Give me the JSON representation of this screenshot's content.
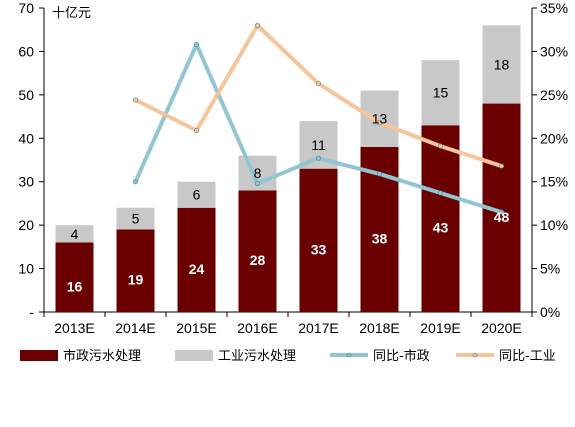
{
  "chart_data": {
    "type": "bar",
    "subtype": "stacked bar with dual-axis lines",
    "unit_label": "十亿元",
    "categories": [
      "2013E",
      "2014E",
      "2015E",
      "2016E",
      "2017E",
      "2018E",
      "2019E",
      "2020E"
    ],
    "y_left": {
      "ticks": [
        "-",
        "10",
        "20",
        "30",
        "40",
        "50",
        "60",
        "70"
      ],
      "range": [
        0,
        70
      ]
    },
    "y_right": {
      "ticks": [
        "0%",
        "5%",
        "10%",
        "15%",
        "20%",
        "25%",
        "30%",
        "35%"
      ],
      "range": [
        0,
        35
      ]
    },
    "grid": false,
    "legend_position": "bottom",
    "series": [
      {
        "name": "市政污水处理",
        "type": "bar",
        "axis": "left",
        "color": "#6b0000",
        "label_color": "#ffffff",
        "values": [
          16,
          19,
          24,
          28,
          33,
          38,
          43,
          48
        ],
        "labels": [
          "16",
          "19",
          "24",
          "28",
          "33",
          "38",
          "43",
          "48"
        ]
      },
      {
        "name": "工业污水处理",
        "type": "bar",
        "axis": "left",
        "color": "#c8c8c8",
        "label_color": "#000000",
        "values": [
          4,
          5,
          6,
          8,
          11,
          13,
          15,
          18
        ],
        "labels": [
          "4",
          "5",
          "6",
          "8",
          "11",
          "13",
          "15",
          "18"
        ]
      },
      {
        "name": "同比-市政",
        "type": "line",
        "axis": "right",
        "color": "#92c5d2",
        "values": [
          null,
          15.0,
          30.8,
          14.8,
          17.7,
          15.9,
          13.7,
          11.5
        ]
      },
      {
        "name": "同比-工业",
        "type": "line",
        "axis": "right",
        "color": "#f5c49a",
        "values": [
          null,
          24.4,
          20.9,
          33.0,
          26.3,
          21.8,
          19.1,
          16.8
        ]
      }
    ]
  }
}
